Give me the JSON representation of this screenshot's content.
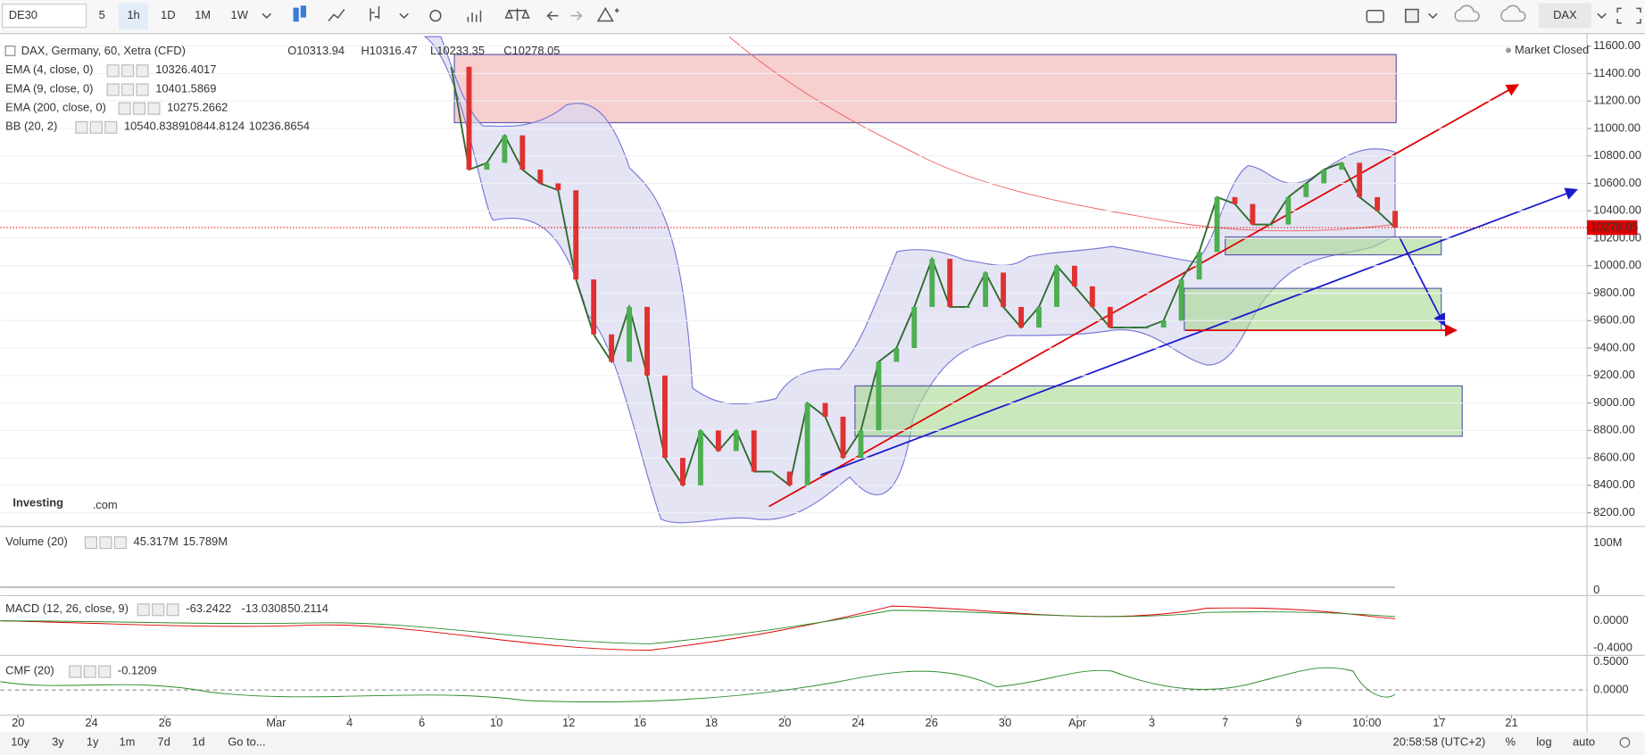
{
  "toolbar": {
    "symbol": "DE30",
    "intervals": [
      "5",
      "1h",
      "1D",
      "1M",
      "1W"
    ],
    "active_interval": "1h",
    "market": "DAX"
  },
  "main_pane": {
    "title": "DAX, Germany, 60, Xetra (CFD)",
    "ohlc": [
      "O10313.94",
      "H10316.47",
      "L10233.35",
      "C10278.05"
    ],
    "status": "Market Closed",
    "indicators": [
      {
        "label": "EMA (4, close, 0)",
        "values": [
          {
            "text": "10326.4017",
            "color": "#1e7b1e"
          }
        ]
      },
      {
        "label": "EMA (9, close, 0)",
        "values": [
          {
            "text": "10401.5869",
            "color": "#e00000"
          }
        ]
      },
      {
        "label": "EMA (200, close, 0)",
        "values": [
          {
            "text": "10275.2662",
            "color": "#e00000"
          }
        ]
      },
      {
        "label": "BB (20, 2)",
        "values": [
          {
            "text": "10540.8389",
            "color": "#e00000"
          },
          {
            "text": "10844.8124",
            "color": "#1a1acc"
          },
          {
            "text": "10236.8654",
            "color": "#1a1acc"
          }
        ]
      }
    ],
    "price_ticks": [
      "11600.00",
      "11400.00",
      "11200.00",
      "11000.00",
      "10800.00",
      "10600.00",
      "10400.00",
      "10200.00",
      "10000.00",
      "9800.00",
      "9600.00",
      "9400.00",
      "9200.00",
      "9000.00",
      "8800.00",
      "8600.00",
      "8400.00",
      "8200.00"
    ],
    "last_price": "10278.05",
    "close_series": [
      11450,
      10700,
      10750,
      10950,
      10700,
      10600,
      10550,
      9900,
      9500,
      9300,
      9700,
      9200,
      8600,
      8400,
      8800,
      8650,
      8800,
      8500,
      8500,
      8400,
      9000,
      8900,
      8600,
      8800,
      9300,
      9400,
      9700,
      10050,
      9700,
      9700,
      9950,
      9700,
      9550,
      9700,
      10000,
      9850,
      9700,
      9550,
      9550,
      9550,
      9600,
      9900,
      10100,
      10500,
      10450,
      10300,
      10300,
      10500,
      10600,
      10700,
      10750,
      10500,
      10400,
      10278.05
    ],
    "logo": {
      "brand": "Investing",
      "suffix": ".com"
    }
  },
  "volume_pane": {
    "label": "Volume (20)",
    "values": [
      {
        "text": "45.317M",
        "color": "#e00000"
      },
      {
        "text": "15.789M",
        "color": "#222"
      }
    ],
    "axis": [
      "100M",
      "0"
    ]
  },
  "macd_pane": {
    "label": "MACD (12, 26, close, 9)",
    "values": [
      {
        "text": "-63.2422",
        "color": "#e00000"
      },
      {
        "text": "-13.0308",
        "color": "#222"
      },
      {
        "text": "50.2114",
        "color": "#e00000"
      }
    ],
    "axis": [
      "0.0000",
      "-0.4000"
    ]
  },
  "cmf_pane": {
    "label": "CMF (20)",
    "values": [
      {
        "text": "-0.1209",
        "color": "#1e7b1e"
      }
    ],
    "axis": [
      "0.5000",
      "0.0000"
    ]
  },
  "date_axis": [
    "20",
    "24",
    "26",
    "Mar",
    "4",
    "6",
    "10",
    "12",
    "16",
    "18",
    "20",
    "24",
    "26",
    "30",
    "Apr",
    "3",
    "7",
    "9",
    "10:00",
    "17",
    "21"
  ],
  "bottom_bar": {
    "ranges": [
      "10y",
      "3y",
      "1y",
      "1m",
      "7d",
      "1d"
    ],
    "goto": "Go to...",
    "clock": "20:58:58 (UTC+2)",
    "options": [
      "%",
      "log",
      "auto"
    ]
  }
}
